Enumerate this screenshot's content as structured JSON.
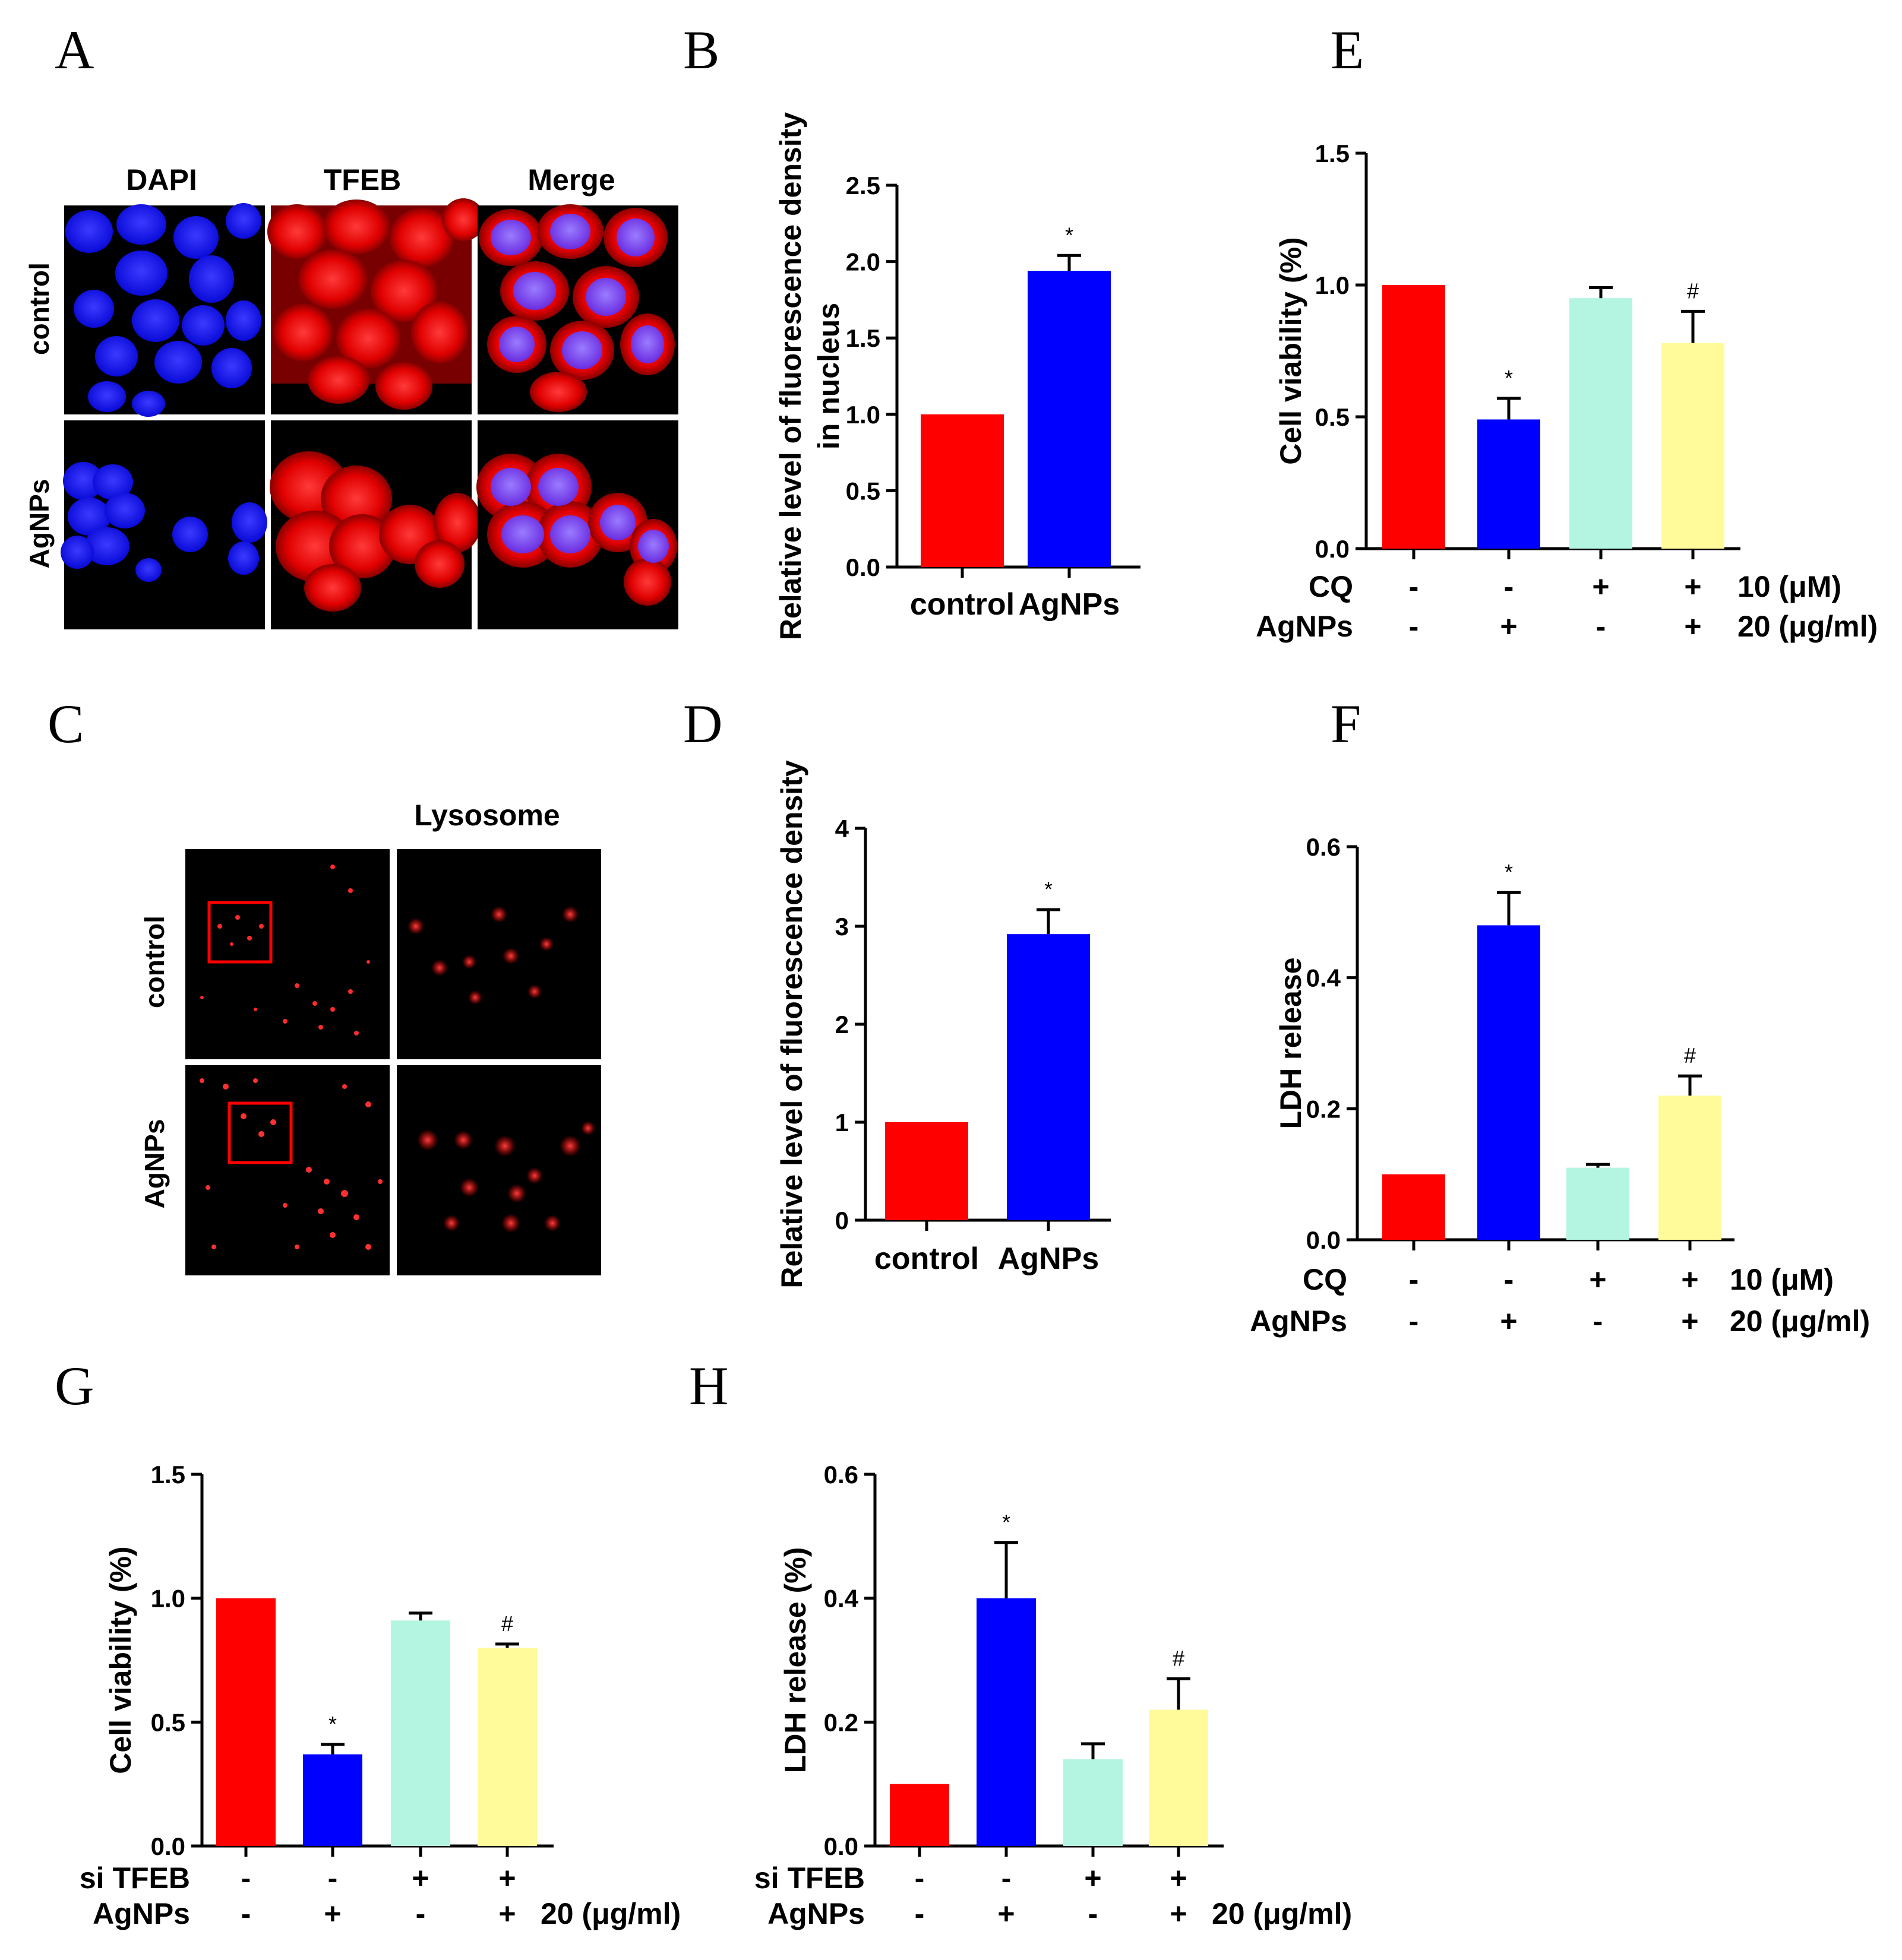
{
  "panels": {
    "A": {
      "letter": "A",
      "columns": [
        "DAPI",
        "TFEB",
        "Merge"
      ],
      "rows": [
        "control",
        "AgNPs"
      ]
    },
    "C": {
      "letter": "C",
      "column_title": "Lysosome",
      "rows": [
        "control",
        "AgNPs"
      ]
    }
  },
  "chart_data": [
    {
      "id": "B",
      "letter": "B",
      "type": "bar",
      "categories": [
        "control",
        "AgNPs"
      ],
      "values": [
        1.0,
        1.94
      ],
      "errors": [
        0,
        0.1
      ],
      "significance": [
        "",
        "*"
      ],
      "colors": [
        "#ff0000",
        "#0000ff"
      ],
      "ylabel": "Relative level of fluorescence density in nucleus",
      "ylabel_lines": [
        "Relative level of fluorescence density",
        "in nucleus"
      ],
      "ylim": [
        0,
        2.5
      ],
      "yticks": [
        "0.0",
        "0.5",
        "1.0",
        "1.5",
        "2.0",
        "2.5"
      ]
    },
    {
      "id": "D",
      "letter": "D",
      "type": "bar",
      "categories": [
        "control",
        "AgNPs"
      ],
      "values": [
        1.0,
        2.92
      ],
      "errors": [
        0,
        0.25
      ],
      "significance": [
        "",
        "*"
      ],
      "colors": [
        "#ff0000",
        "#0000ff"
      ],
      "ylabel": "Relative level of fluorescence density",
      "ylabel_lines": [
        "Relative level of fluorescence density"
      ],
      "ylim": [
        0,
        4
      ],
      "yticks": [
        "0",
        "1",
        "2",
        "3",
        "4"
      ]
    },
    {
      "id": "E",
      "letter": "E",
      "type": "bar",
      "values": [
        1.0,
        0.49,
        0.95,
        0.78
      ],
      "errors": [
        0,
        0.08,
        0.04,
        0.12
      ],
      "significance": [
        "",
        "*",
        "",
        "#"
      ],
      "colors": [
        "#ff0000",
        "#0000ff",
        "#b3f5e0",
        "#fffb9b"
      ],
      "ylabel": "Cell viability (%)",
      "ylim": [
        0,
        1.5
      ],
      "yticks": [
        "0.0",
        "0.5",
        "1.0",
        "1.5"
      ],
      "conditions": [
        {
          "name": "CQ",
          "signs": [
            "-",
            "-",
            "+",
            "+"
          ],
          "dose": "10 (μM)"
        },
        {
          "name": "AgNPs",
          "signs": [
            "-",
            "+",
            "-",
            "+"
          ],
          "dose": "20 (μg/ml)"
        }
      ]
    },
    {
      "id": "F",
      "letter": "F",
      "type": "bar",
      "values": [
        0.1,
        0.48,
        0.11,
        0.22
      ],
      "errors": [
        0,
        0.05,
        0.005,
        0.03
      ],
      "significance": [
        "",
        "*",
        "",
        "#"
      ],
      "colors": [
        "#ff0000",
        "#0000ff",
        "#b3f5e0",
        "#fffb9b"
      ],
      "ylabel": "LDH release",
      "ylim": [
        0,
        0.6
      ],
      "yticks": [
        "0.0",
        "0.2",
        "0.4",
        "0.6"
      ],
      "conditions": [
        {
          "name": "CQ",
          "signs": [
            "-",
            "-",
            "+",
            "+"
          ],
          "dose": "10 (μM)"
        },
        {
          "name": "AgNPs",
          "signs": [
            "-",
            "+",
            "-",
            "+"
          ],
          "dose": "20 (μg/ml)"
        }
      ]
    },
    {
      "id": "G",
      "letter": "G",
      "type": "bar",
      "values": [
        1.0,
        0.37,
        0.91,
        0.8
      ],
      "errors": [
        0,
        0.04,
        0.03,
        0.015
      ],
      "significance": [
        "",
        "*",
        "",
        "#"
      ],
      "colors": [
        "#ff0000",
        "#0000ff",
        "#b3f5e0",
        "#fffb9b"
      ],
      "ylabel": "Cell viability (%)",
      "ylim": [
        0,
        1.5
      ],
      "yticks": [
        "0.0",
        "0.5",
        "1.0",
        "1.5"
      ],
      "conditions": [
        {
          "name": "si TFEB",
          "signs": [
            "-",
            "-",
            "+",
            "+"
          ],
          "dose": ""
        },
        {
          "name": "AgNPs",
          "signs": [
            "-",
            "+",
            "-",
            "+"
          ],
          "dose": "20 (μg/ml)"
        }
      ]
    },
    {
      "id": "H",
      "letter": "H",
      "type": "bar",
      "values": [
        0.1,
        0.4,
        0.14,
        0.22
      ],
      "errors": [
        0,
        0.09,
        0.025,
        0.05
      ],
      "significance": [
        "",
        "*",
        "",
        "#"
      ],
      "colors": [
        "#ff0000",
        "#0000ff",
        "#b3f5e0",
        "#fffb9b"
      ],
      "ylabel": "LDH release (%)",
      "ylim": [
        0,
        0.6
      ],
      "yticks": [
        "0.0",
        "0.2",
        "0.4",
        "0.6"
      ],
      "conditions": [
        {
          "name": "si TFEB",
          "signs": [
            "-",
            "-",
            "+",
            "+"
          ],
          "dose": ""
        },
        {
          "name": "AgNPs",
          "signs": [
            "-",
            "+",
            "-",
            "+"
          ],
          "dose": "20 (μg/ml)"
        }
      ]
    }
  ]
}
